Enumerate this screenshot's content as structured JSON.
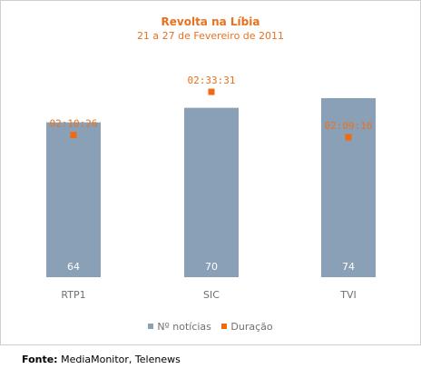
{
  "chart_data": {
    "type": "bar",
    "title": "Revolta na Líbia",
    "subtitle": "21 a 27 de Fevereiro de 2011",
    "categories": [
      "RTP1",
      "SIC",
      "TVI"
    ],
    "series": [
      {
        "name": "Nº notícias",
        "values": [
          64,
          70,
          74
        ],
        "color": "#8aa0b6"
      },
      {
        "name": "Duração",
        "values": [
          "02:10:26",
          "02:33:31",
          "02:09:16"
        ],
        "color": "#f06a12"
      }
    ],
    "ylim": [
      0,
      80
    ],
    "legend_position": "bottom",
    "grid": false
  },
  "source": {
    "label": "Fonte:",
    "text": "MediaMonitor, Telenews"
  }
}
